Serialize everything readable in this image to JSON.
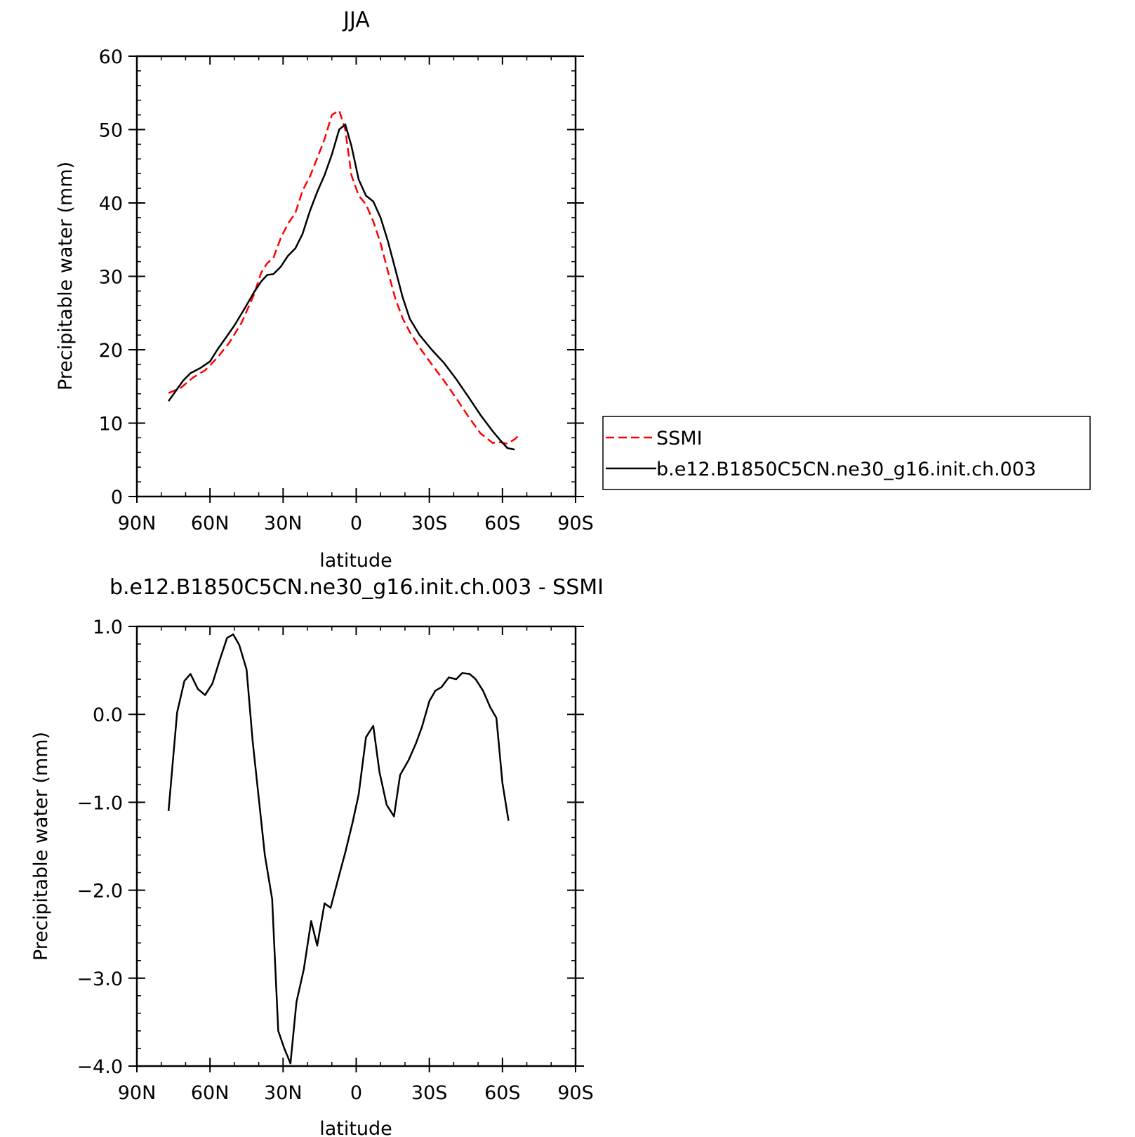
{
  "chart_data": [
    {
      "type": "line",
      "title": "JJA",
      "xlabel": "latitude",
      "ylabel": "Precipitable water (mm)",
      "xlim": [
        90,
        -90
      ],
      "ylim": [
        0,
        60
      ],
      "x_ticks": [
        {
          "value": 90,
          "label": "90N"
        },
        {
          "value": 60,
          "label": "60N"
        },
        {
          "value": 30,
          "label": "30N"
        },
        {
          "value": 0,
          "label": "0"
        },
        {
          "value": -30,
          "label": "30S"
        },
        {
          "value": -60,
          "label": "60S"
        },
        {
          "value": -90,
          "label": "90S"
        }
      ],
      "y_ticks": [
        {
          "value": 0,
          "label": "0"
        },
        {
          "value": 10,
          "label": "10"
        },
        {
          "value": 20,
          "label": "20"
        },
        {
          "value": 30,
          "label": "30"
        },
        {
          "value": 40,
          "label": "40"
        },
        {
          "value": 50,
          "label": "50"
        },
        {
          "value": 60,
          "label": "60"
        }
      ],
      "legend": {
        "placement": "right",
        "entries": [
          {
            "label": "SSMI",
            "color": "#ff0000",
            "dash": "dashed"
          },
          {
            "label": "b.e12.B1850C5CN.ne30_g16.init.ch.003",
            "color": "#000000",
            "dash": "solid"
          }
        ]
      },
      "series": [
        {
          "name": "SSMI",
          "color": "#ff0000",
          "dash": "dashed",
          "points": [
            [
              77.0,
              14.1
            ],
            [
              72.0,
              14.8
            ],
            [
              67.0,
              16.2
            ],
            [
              62.0,
              17.2
            ],
            [
              57.0,
              18.9
            ],
            [
              52.0,
              21.0
            ],
            [
              47.0,
              23.7
            ],
            [
              42.0,
              27.5
            ],
            [
              39.0,
              30.5
            ],
            [
              36.5,
              31.8
            ],
            [
              34.0,
              32.5
            ],
            [
              31.0,
              35.2
            ],
            [
              28.0,
              37.2
            ],
            [
              25.0,
              38.6
            ],
            [
              22.0,
              41.7
            ],
            [
              19.0,
              43.6
            ],
            [
              16.0,
              46.1
            ],
            [
              13.0,
              48.7
            ],
            [
              10.0,
              52.0
            ],
            [
              7.0,
              52.6
            ],
            [
              4.5,
              50.0
            ],
            [
              2.0,
              43.8
            ],
            [
              -1.0,
              41.0
            ],
            [
              -4.0,
              39.8
            ],
            [
              -7.0,
              37.5
            ],
            [
              -10.0,
              34.5
            ],
            [
              -13.0,
              30.7
            ],
            [
              -16.0,
              27.0
            ],
            [
              -19.0,
              24.3
            ],
            [
              -22.0,
              22.4
            ],
            [
              -26.0,
              20.3
            ],
            [
              -31.0,
              18.0
            ],
            [
              -36.0,
              15.8
            ],
            [
              -41.0,
              13.4
            ],
            [
              -46.0,
              10.9
            ],
            [
              -51.0,
              8.6
            ],
            [
              -56.0,
              7.3
            ],
            [
              -59.0,
              7.4
            ],
            [
              -62.0,
              7.2
            ],
            [
              -65.0,
              7.8
            ],
            [
              -67.0,
              8.4
            ]
          ]
        },
        {
          "name": "b.e12.B1850C5CN.ne30_g16.init.ch.003",
          "color": "#000000",
          "dash": "solid",
          "points": [
            [
              77.0,
              13.0
            ],
            [
              74.0,
              14.4
            ],
            [
              71.0,
              15.8
            ],
            [
              68.0,
              16.8
            ],
            [
              64.0,
              17.5
            ],
            [
              60.0,
              18.4
            ],
            [
              57.0,
              20.0
            ],
            [
              54.0,
              21.4
            ],
            [
              50.0,
              23.3
            ],
            [
              46.0,
              25.5
            ],
            [
              42.0,
              27.8
            ],
            [
              39.0,
              29.3
            ],
            [
              36.5,
              30.2
            ],
            [
              34.0,
              30.3
            ],
            [
              31.0,
              31.3
            ],
            [
              28.0,
              32.8
            ],
            [
              25.0,
              33.8
            ],
            [
              22.0,
              35.8
            ],
            [
              19.0,
              38.9
            ],
            [
              16.0,
              41.5
            ],
            [
              13.0,
              43.8
            ],
            [
              10.0,
              46.6
            ],
            [
              7.0,
              50.0
            ],
            [
              4.5,
              50.7
            ],
            [
              2.0,
              47.8
            ],
            [
              -1.0,
              43.2
            ],
            [
              -4.0,
              41.0
            ],
            [
              -7.0,
              40.2
            ],
            [
              -10.0,
              38.0
            ],
            [
              -13.0,
              34.8
            ],
            [
              -16.0,
              31.0
            ],
            [
              -19.0,
              27.2
            ],
            [
              -22.0,
              24.2
            ],
            [
              -26.0,
              22.0
            ],
            [
              -31.0,
              20.0
            ],
            [
              -36.0,
              18.2
            ],
            [
              -41.0,
              16.0
            ],
            [
              -46.0,
              13.6
            ],
            [
              -51.0,
              11.1
            ],
            [
              -56.0,
              8.9
            ],
            [
              -59.0,
              7.7
            ],
            [
              -62.0,
              6.6
            ],
            [
              -65.0,
              6.4
            ]
          ]
        }
      ]
    },
    {
      "type": "line",
      "title": "b.e12.B1850C5CN.ne30_g16.init.ch.003 - SSMI",
      "xlabel": "latitude",
      "ylabel": "Precipitable water (mm)",
      "xlim": [
        90,
        -90
      ],
      "ylim": [
        -4.0,
        1.0
      ],
      "x_ticks": [
        {
          "value": 90,
          "label": "90N"
        },
        {
          "value": 60,
          "label": "60N"
        },
        {
          "value": 30,
          "label": "30N"
        },
        {
          "value": 0,
          "label": "0"
        },
        {
          "value": -30,
          "label": "30S"
        },
        {
          "value": -60,
          "label": "60S"
        },
        {
          "value": -90,
          "label": "90S"
        }
      ],
      "y_ticks": [
        {
          "value": 1.0,
          "label": "1.0"
        },
        {
          "value": 0.0,
          "label": "0.0"
        },
        {
          "value": -1.0,
          "label": "−1.0"
        },
        {
          "value": -2.0,
          "label": "−2.0"
        },
        {
          "value": -3.0,
          "label": "−3.0"
        },
        {
          "value": -4.0,
          "label": "−4.0"
        }
      ],
      "series": [
        {
          "color": "#000000",
          "dash": "solid",
          "points": [
            [
              77.0,
              -1.1
            ],
            [
              73.5,
              0.02
            ],
            [
              70.5,
              0.38
            ],
            [
              68.0,
              0.46
            ],
            [
              65.0,
              0.29
            ],
            [
              62.0,
              0.22
            ],
            [
              59.0,
              0.35
            ],
            [
              56.0,
              0.62
            ],
            [
              53.0,
              0.87
            ],
            [
              50.5,
              0.91
            ],
            [
              48.0,
              0.79
            ],
            [
              45.0,
              0.51
            ],
            [
              42.5,
              -0.3
            ],
            [
              40.0,
              -0.95
            ],
            [
              37.5,
              -1.6
            ],
            [
              34.5,
              -2.1
            ],
            [
              32.0,
              -3.6
            ],
            [
              29.5,
              -3.8
            ],
            [
              27.0,
              -3.97
            ],
            [
              24.5,
              -3.27
            ],
            [
              21.5,
              -2.9
            ],
            [
              18.5,
              -2.35
            ],
            [
              16.0,
              -2.63
            ],
            [
              13.0,
              -2.15
            ],
            [
              10.5,
              -2.2
            ],
            [
              7.5,
              -1.88
            ],
            [
              4.5,
              -1.57
            ],
            [
              1.5,
              -1.23
            ],
            [
              -1.0,
              -0.91
            ],
            [
              -4.0,
              -0.26
            ],
            [
              -7.0,
              -0.13
            ],
            [
              -9.5,
              -0.65
            ],
            [
              -12.5,
              -1.03
            ],
            [
              -15.5,
              -1.16
            ],
            [
              -18.0,
              -0.69
            ],
            [
              -21.5,
              -0.52
            ],
            [
              -24.5,
              -0.33
            ],
            [
              -27.0,
              -0.14
            ],
            [
              -30.0,
              0.15
            ],
            [
              -32.5,
              0.27
            ],
            [
              -35.0,
              0.31
            ],
            [
              -38.0,
              0.42
            ],
            [
              -41.0,
              0.4
            ],
            [
              -43.5,
              0.47
            ],
            [
              -46.5,
              0.46
            ],
            [
              -49.0,
              0.4
            ],
            [
              -52.0,
              0.27
            ],
            [
              -55.0,
              0.08
            ],
            [
              -57.5,
              -0.04
            ],
            [
              -60.0,
              -0.78
            ],
            [
              -62.5,
              -1.21
            ]
          ]
        }
      ]
    }
  ]
}
